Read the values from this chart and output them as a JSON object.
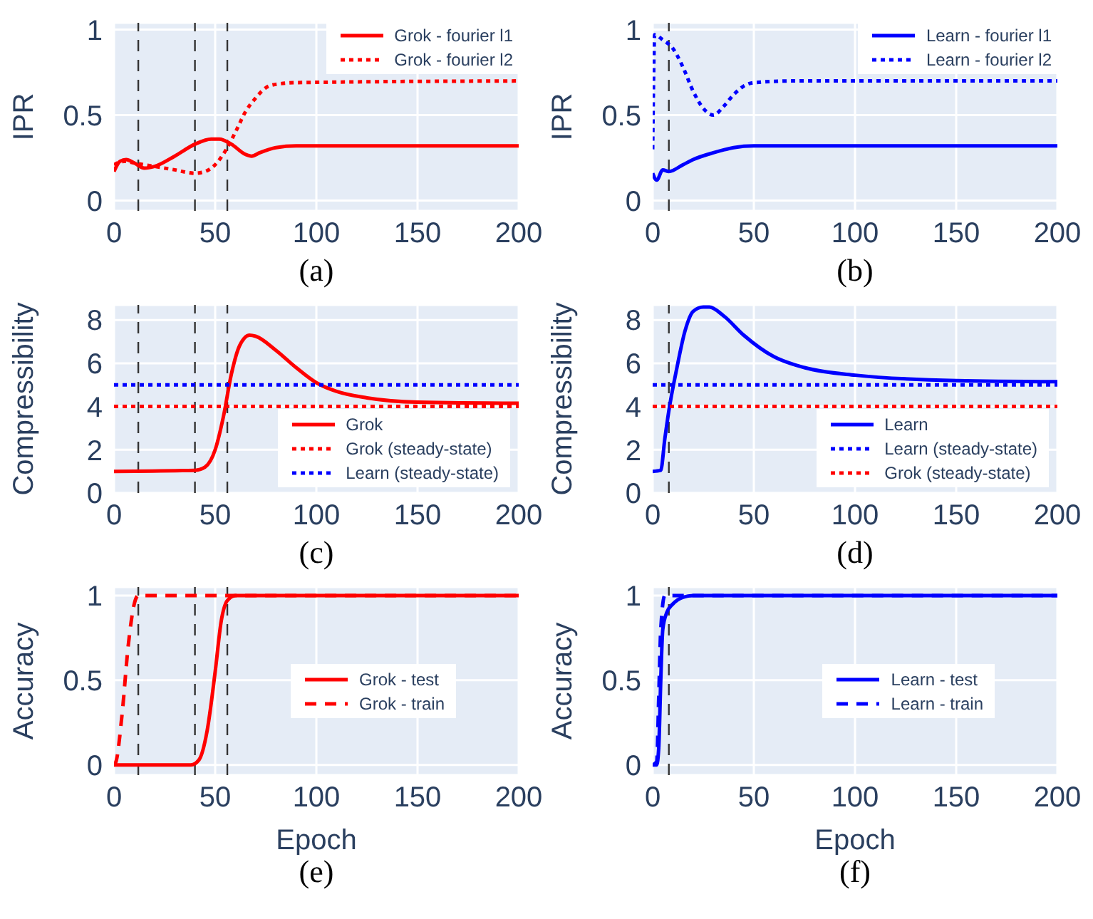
{
  "chart_data": [
    {
      "type": "line",
      "ylabel": "IPR",
      "annotations": [
        "(a)"
      ],
      "xlim": [
        0,
        200
      ],
      "xticks": [
        0,
        50,
        100,
        150,
        200
      ],
      "ylim": [
        -0.06,
        1.04
      ],
      "yticks": [
        0,
        0.5,
        1
      ],
      "grid": true,
      "legend": "top right",
      "ref_lines": [
        {
          "axis": "x",
          "value": 12,
          "color": "#333333",
          "line_style": "dashed"
        },
        {
          "axis": "x",
          "value": 40,
          "color": "#333333",
          "line_style": "dashed"
        },
        {
          "axis": "x",
          "value": 56,
          "color": "#333333",
          "line_style": "dashed"
        }
      ],
      "series": [
        {
          "name": "Grok - fourier l1",
          "color": "#ff0000",
          "line_style": "solid",
          "x": [
            0,
            3,
            6,
            10,
            15,
            20,
            30,
            40,
            48,
            52,
            58,
            65,
            68,
            72,
            80,
            90,
            200
          ],
          "values": [
            0.17,
            0.23,
            0.24,
            0.22,
            0.19,
            0.2,
            0.26,
            0.33,
            0.36,
            0.36,
            0.33,
            0.27,
            0.26,
            0.28,
            0.31,
            0.32,
            0.32
          ]
        },
        {
          "name": "Grok - fourier l2",
          "color": "#ff0000",
          "line_style": "dotted",
          "x": [
            0,
            5,
            10,
            20,
            30,
            40,
            45,
            50,
            55,
            60,
            65,
            70,
            75,
            80,
            90,
            200
          ],
          "values": [
            0.21,
            0.23,
            0.22,
            0.2,
            0.18,
            0.16,
            0.17,
            0.21,
            0.29,
            0.4,
            0.52,
            0.6,
            0.66,
            0.68,
            0.69,
            0.7
          ]
        }
      ]
    },
    {
      "type": "line",
      "ylabel": "IPR",
      "annotations": [
        "(b)"
      ],
      "xlim": [
        0,
        200
      ],
      "xticks": [
        0,
        50,
        100,
        150,
        200
      ],
      "ylim": [
        -0.06,
        1.04
      ],
      "yticks": [
        0,
        0.5,
        1
      ],
      "grid": true,
      "legend": "top right",
      "ref_lines": [
        {
          "axis": "x",
          "value": 8,
          "color": "#333333",
          "line_style": "dashed"
        }
      ],
      "series": [
        {
          "name": "Learn - fourier l1",
          "color": "#0000ff",
          "line_style": "solid",
          "x": [
            0,
            2,
            5,
            8,
            15,
            20,
            30,
            40,
            50,
            200
          ],
          "values": [
            0.16,
            0.12,
            0.18,
            0.17,
            0.21,
            0.24,
            0.28,
            0.31,
            0.32,
            0.32
          ]
        },
        {
          "name": "Learn - fourier l2",
          "color": "#0000ff",
          "line_style": "dotted",
          "x": [
            0,
            1,
            5,
            10,
            15,
            20,
            25,
            30,
            35,
            40,
            45,
            50,
            70,
            200
          ],
          "values": [
            0.3,
            0.97,
            0.94,
            0.89,
            0.78,
            0.64,
            0.54,
            0.5,
            0.55,
            0.62,
            0.67,
            0.69,
            0.7,
            0.7
          ]
        }
      ]
    },
    {
      "type": "line",
      "ylabel": "Compressibility",
      "annotations": [
        "(c)"
      ],
      "xlim": [
        0,
        200
      ],
      "xticks": [
        0,
        50,
        100,
        150,
        200
      ],
      "ylim": [
        0,
        8.7
      ],
      "yticks": [
        0,
        2,
        4,
        6,
        8
      ],
      "grid": true,
      "legend": "bottom right",
      "ref_lines": [
        {
          "axis": "x",
          "value": 12,
          "color": "#333333",
          "line_style": "dashed"
        },
        {
          "axis": "x",
          "value": 40,
          "color": "#333333",
          "line_style": "dashed"
        },
        {
          "axis": "x",
          "value": 56,
          "color": "#333333",
          "line_style": "dashed"
        }
      ],
      "series": [
        {
          "name": "Grok",
          "color": "#ff0000",
          "line_style": "solid",
          "x": [
            0,
            40,
            45,
            50,
            54,
            58,
            62,
            67,
            70,
            80,
            90,
            100,
            110,
            125,
            150,
            200
          ],
          "values": [
            1,
            1.05,
            1.2,
            2,
            3.5,
            5.5,
            6.8,
            7.3,
            7.25,
            6.6,
            5.8,
            5.1,
            4.7,
            4.4,
            4.2,
            4.15
          ]
        },
        {
          "name": "Grok (steady-state)",
          "color": "#ff0000",
          "line_style": "dotted",
          "x": [
            0,
            200
          ],
          "values": [
            4,
            4
          ]
        },
        {
          "name": "Learn (steady-state)",
          "color": "#0000ff",
          "line_style": "dotted",
          "x": [
            0,
            200
          ],
          "values": [
            5,
            5
          ]
        }
      ]
    },
    {
      "type": "line",
      "ylabel": "Compressibility",
      "annotations": [
        "(d)"
      ],
      "xlim": [
        0,
        200
      ],
      "xticks": [
        0,
        50,
        100,
        150,
        200
      ],
      "ylim": [
        0,
        8.7
      ],
      "yticks": [
        0,
        2,
        4,
        6,
        8
      ],
      "grid": true,
      "legend": "bottom right",
      "ref_lines": [
        {
          "axis": "x",
          "value": 8,
          "color": "#333333",
          "line_style": "dashed"
        }
      ],
      "series": [
        {
          "name": "Learn",
          "color": "#0000ff",
          "line_style": "solid",
          "x": [
            0,
            4,
            6,
            8,
            12,
            16,
            20,
            25,
            28,
            35,
            45,
            60,
            75,
            100,
            150,
            200
          ],
          "values": [
            1,
            1.05,
            2.5,
            3.8,
            5.8,
            7.5,
            8.4,
            8.6,
            8.6,
            8.2,
            7.3,
            6.3,
            5.8,
            5.45,
            5.2,
            5.15
          ]
        },
        {
          "name": "Learn (steady-state)",
          "color": "#0000ff",
          "line_style": "dotted",
          "x": [
            0,
            200
          ],
          "values": [
            5,
            5
          ]
        },
        {
          "name": "Grok (steady-state)",
          "color": "#ff0000",
          "line_style": "dotted",
          "x": [
            0,
            200
          ],
          "values": [
            4,
            4
          ]
        }
      ]
    },
    {
      "type": "line",
      "ylabel": "Accuracy",
      "xlabel": "Epoch",
      "annotations": [
        "(e)"
      ],
      "xlim": [
        0,
        200
      ],
      "xticks": [
        0,
        50,
        100,
        150,
        200
      ],
      "ylim": [
        -0.06,
        1.05
      ],
      "yticks": [
        0,
        0.5,
        1
      ],
      "grid": true,
      "legend": "right",
      "ref_lines": [
        {
          "axis": "x",
          "value": 12,
          "color": "#333333",
          "line_style": "dashed"
        },
        {
          "axis": "x",
          "value": 40,
          "color": "#333333",
          "line_style": "dashed"
        },
        {
          "axis": "x",
          "value": 56,
          "color": "#333333",
          "line_style": "dashed"
        }
      ],
      "series": [
        {
          "name": "Grok - test",
          "color": "#ff0000",
          "line_style": "solid",
          "x": [
            0,
            38,
            42,
            46,
            50,
            53,
            56,
            60,
            200
          ],
          "values": [
            0,
            0,
            0.03,
            0.2,
            0.55,
            0.85,
            0.97,
            1,
            1
          ]
        },
        {
          "name": "Grok - train",
          "color": "#ff0000",
          "line_style": "dashed",
          "x": [
            0,
            1,
            4,
            7,
            10,
            12,
            200
          ],
          "values": [
            0,
            0.02,
            0.3,
            0.7,
            0.95,
            1,
            1
          ]
        }
      ]
    },
    {
      "type": "line",
      "ylabel": "Accuracy",
      "xlabel": "Epoch",
      "annotations": [
        "(f)"
      ],
      "xlim": [
        0,
        200
      ],
      "xticks": [
        0,
        50,
        100,
        150,
        200
      ],
      "ylim": [
        -0.06,
        1.05
      ],
      "yticks": [
        0,
        0.5,
        1
      ],
      "grid": true,
      "legend": "right",
      "ref_lines": [
        {
          "axis": "x",
          "value": 8,
          "color": "#333333",
          "line_style": "dashed"
        }
      ],
      "series": [
        {
          "name": "Learn - test",
          "color": "#0000ff",
          "line_style": "solid",
          "x": [
            0,
            2,
            3,
            4,
            5,
            7,
            10,
            15,
            20,
            200
          ],
          "values": [
            0,
            0,
            0.1,
            0.5,
            0.8,
            0.9,
            0.95,
            0.99,
            1,
            1
          ]
        },
        {
          "name": "Learn - train",
          "color": "#0000ff",
          "line_style": "dashed",
          "x": [
            0,
            2,
            3,
            4,
            6,
            200
          ],
          "values": [
            0,
            0.02,
            0.4,
            0.8,
            1,
            1
          ]
        }
      ]
    }
  ]
}
